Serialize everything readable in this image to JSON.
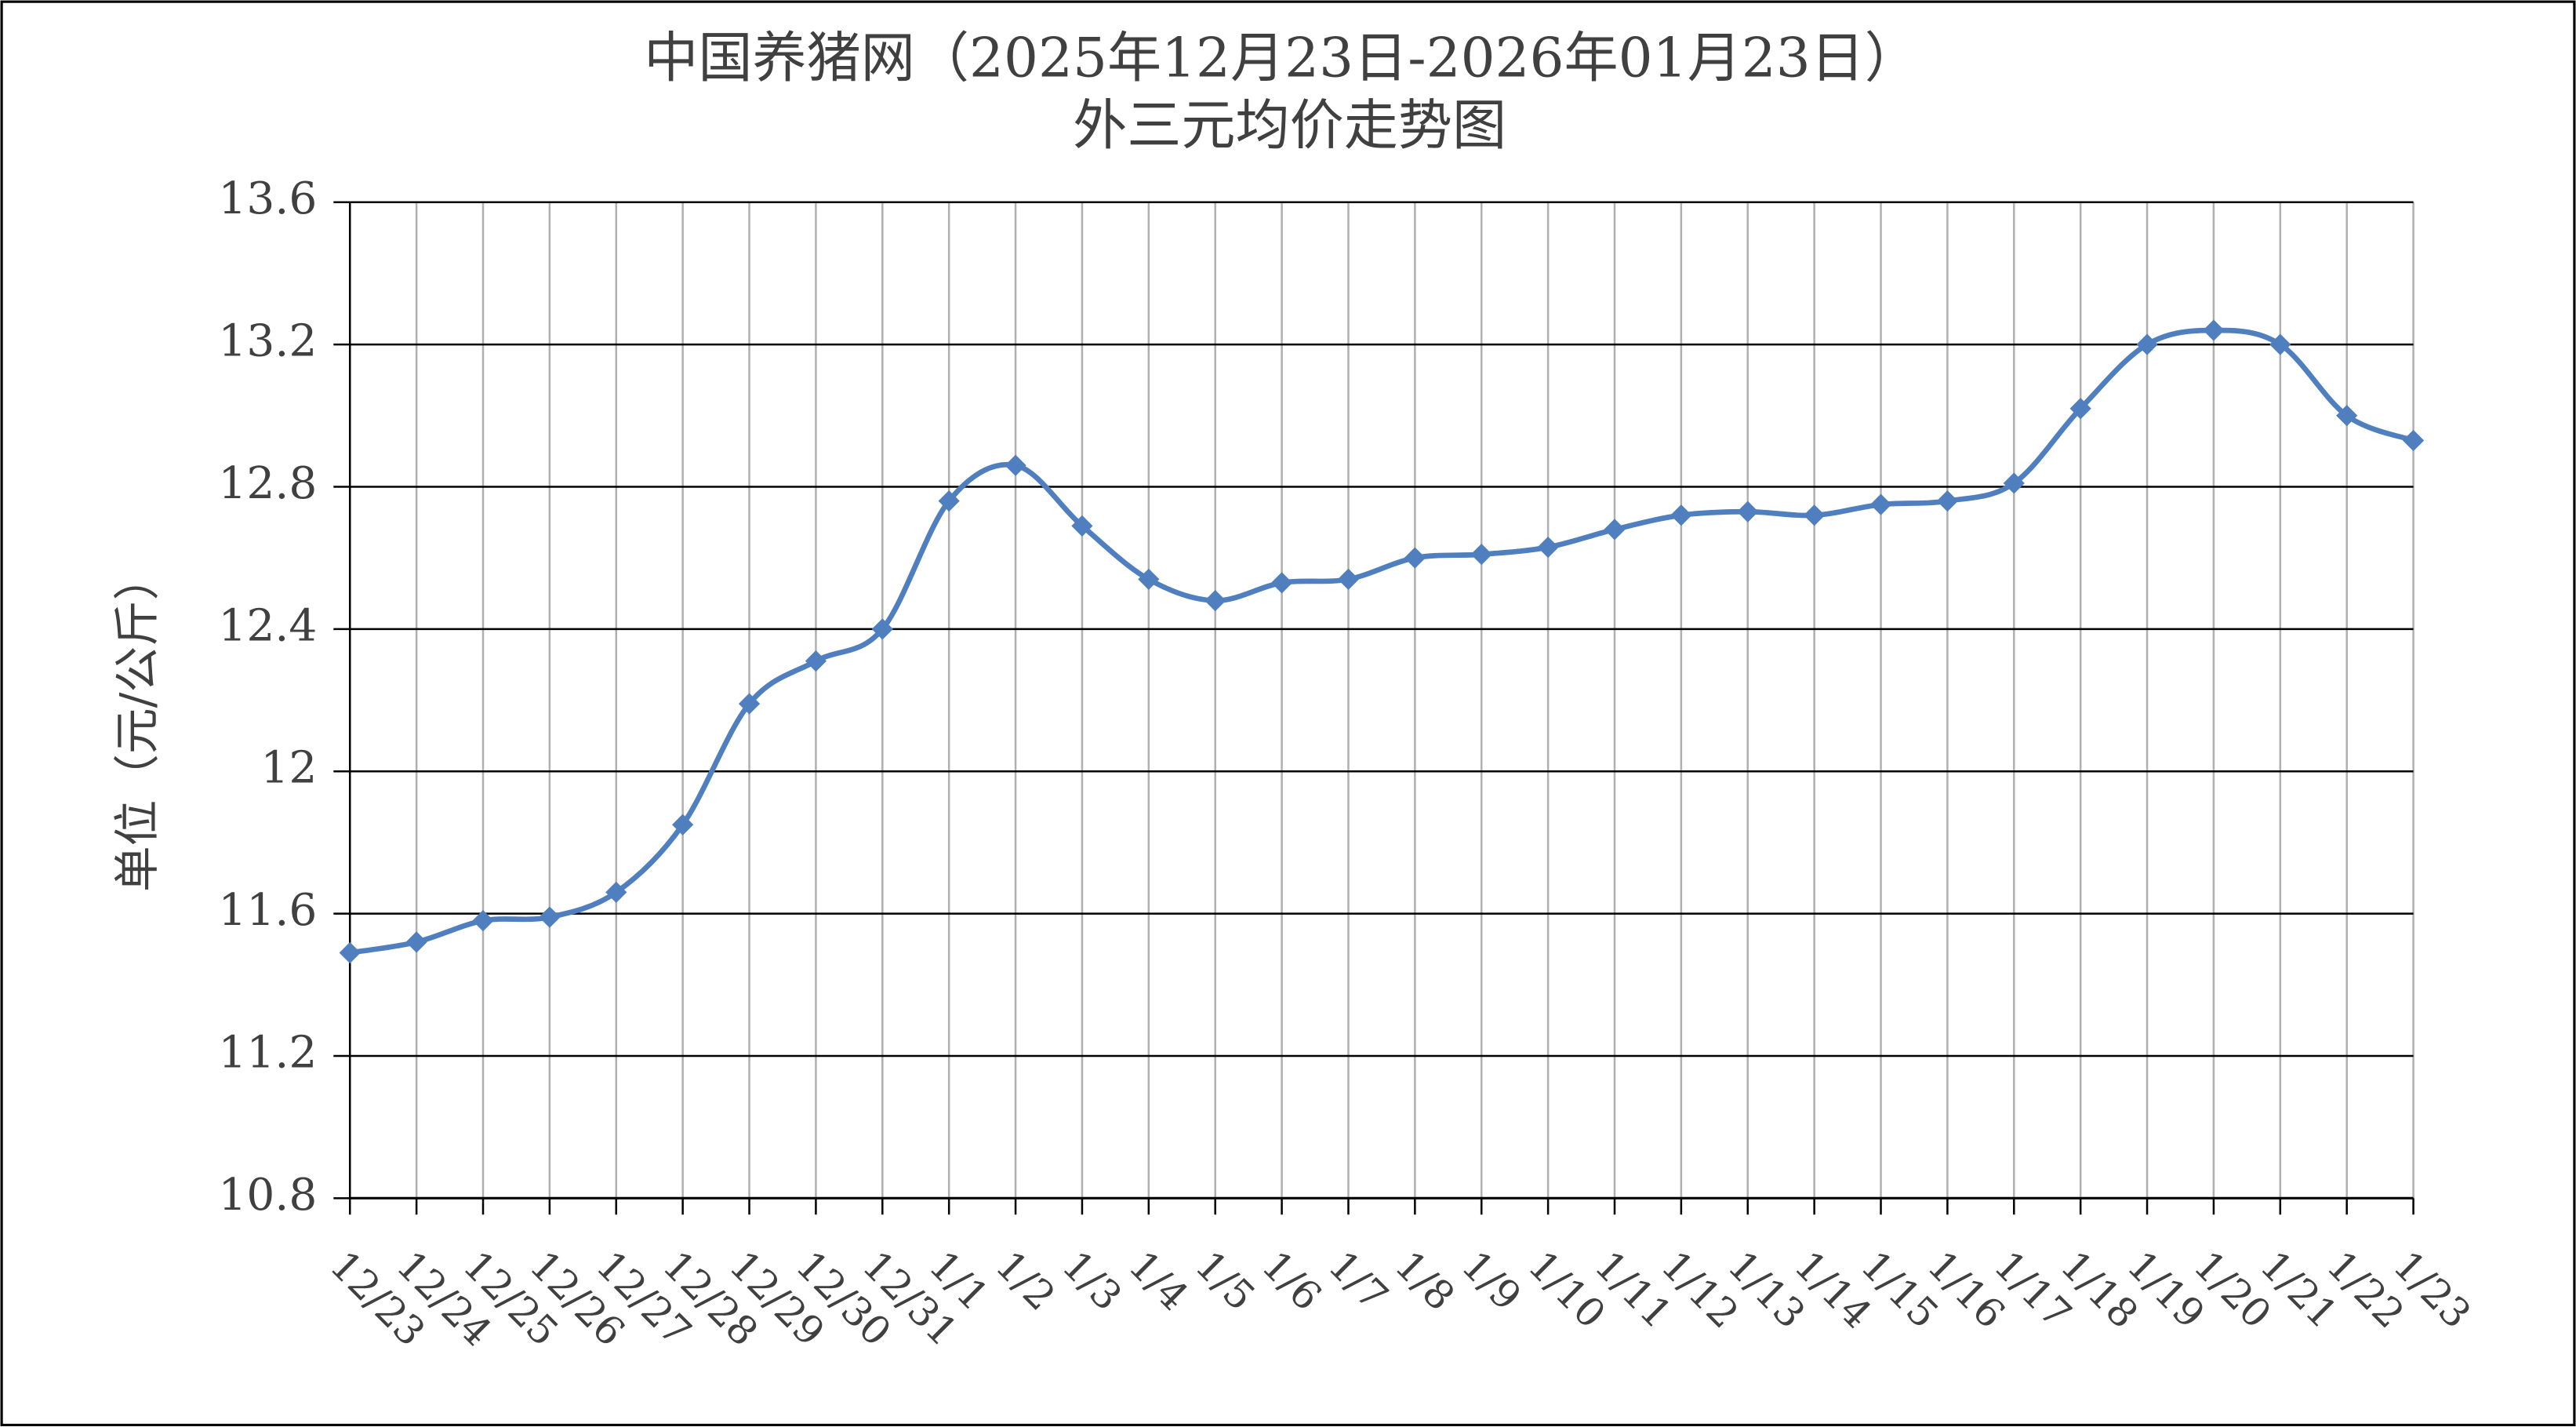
{
  "chart_data": {
    "type": "line",
    "title": "中国养猪网（2025年12月23日-2026年01月23日）",
    "subtitle": "外三元均价走势图",
    "y_label": "单位（元/公斤）",
    "categories": [
      "12/23",
      "12/24",
      "12/25",
      "12/26",
      "12/27",
      "12/28",
      "12/29",
      "12/30",
      "12/31",
      "1/1",
      "1/2",
      "1/3",
      "1/4",
      "1/5",
      "1/6",
      "1/7",
      "1/8",
      "1/9",
      "1/10",
      "1/11",
      "1/12",
      "1/13",
      "1/14",
      "1/15",
      "1/16",
      "1/17",
      "1/18",
      "1/19",
      "1/20",
      "1/21",
      "1/22",
      "1/23"
    ],
    "series": [
      {
        "name": "外三元均价",
        "color": "#4f7fbf",
        "values": [
          11.49,
          11.52,
          11.58,
          11.59,
          11.66,
          11.85,
          12.19,
          12.31,
          12.4,
          12.76,
          12.86,
          12.69,
          12.54,
          12.48,
          12.53,
          12.54,
          12.6,
          12.61,
          12.63,
          12.68,
          12.72,
          12.73,
          12.72,
          12.75,
          12.76,
          12.81,
          13.02,
          13.2,
          13.24,
          13.2,
          13.0,
          12.93
        ]
      }
    ],
    "ylim": [
      10.8,
      13.6
    ],
    "yticks": [
      10.8,
      11.2,
      11.6,
      12,
      12.4,
      12.8,
      13.2,
      13.6
    ],
    "grid": true,
    "smooth": true,
    "marker": "diamond"
  }
}
